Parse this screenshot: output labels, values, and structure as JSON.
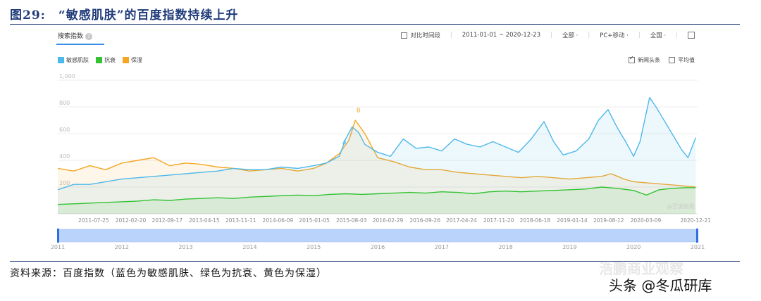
{
  "figure": {
    "title": "图29:　“敏感肌肤”的百度指数持续上升",
    "source": "资料来源：百度指数（蓝色为敏感肌肤、绿色为抗衰、黄色为保湿）",
    "watermark_top": "浩鹏商业观察",
    "watermark_bottom": "头条 @冬瓜研库"
  },
  "ui": {
    "tab_label": "搜索指数",
    "help_icon": "question-icon",
    "compare_label": "对比时间段",
    "date_range": "2011-01-01 ~ 2020-12-23",
    "filter_all": "全部 ·",
    "filter_device": "PC+移动 ·",
    "filter_region": "全国 ·",
    "news_label": "新闻头条",
    "avg_label": "平均值",
    "chart_watermark": "@百度指数",
    "colors": {
      "accent": "#3a8ee6"
    }
  },
  "chart_data": {
    "type": "area",
    "title": "",
    "xlabel": "",
    "ylabel": "",
    "ylim": [
      0,
      1000
    ],
    "yticks": [
      "1,000",
      "800",
      "600",
      "400",
      "200"
    ],
    "y_tick_values": [
      1000,
      800,
      600,
      400,
      200
    ],
    "x_tick_labels": [
      "2011-07-25",
      "2012-02-20",
      "2012-09-17",
      "2013-04-15",
      "2013-11-11",
      "2014-06-09",
      "2015-01-05",
      "2015-08-03",
      "2016-02-29",
      "2016-09-26",
      "2017-04-24",
      "2017-11-20",
      "2018-06-18",
      "2019-01-14",
      "2019-08-12",
      "2020-03-09",
      "2020-12-21"
    ],
    "x_tick_years": [
      2011.56,
      2012.14,
      2012.71,
      2013.29,
      2013.86,
      2014.44,
      2015.01,
      2015.59,
      2016.16,
      2016.74,
      2017.31,
      2017.89,
      2018.46,
      2019.04,
      2019.61,
      2020.19,
      2020.97
    ],
    "xlim": [
      2011.0,
      2021.0
    ],
    "brush_years": [
      "2011",
      "2012",
      "2013",
      "2014",
      "2015",
      "2016",
      "2017",
      "2018",
      "2019",
      "2020",
      "2021"
    ],
    "annotations": [
      {
        "text": "B",
        "x": 2015.7,
        "y": 760,
        "color": "#f5a623"
      },
      {
        "text": "A",
        "x": 2015.48,
        "y": 520,
        "color": "#4db8ea"
      }
    ],
    "grid": true,
    "legend": "top-left",
    "series": [
      {
        "name": "敏感肌肤",
        "color": "#4db8ea",
        "x": [
          2011.0,
          2011.25,
          2011.5,
          2011.75,
          2012.0,
          2012.25,
          2012.5,
          2012.75,
          2013.0,
          2013.25,
          2013.5,
          2013.75,
          2014.0,
          2014.25,
          2014.5,
          2014.75,
          2015.0,
          2015.2,
          2015.4,
          2015.5,
          2015.6,
          2015.7,
          2015.8,
          2016.0,
          2016.2,
          2016.4,
          2016.6,
          2016.8,
          2017.0,
          2017.2,
          2017.4,
          2017.6,
          2017.8,
          2018.0,
          2018.2,
          2018.4,
          2018.6,
          2018.75,
          2018.9,
          2019.1,
          2019.3,
          2019.45,
          2019.6,
          2019.75,
          2019.9,
          2020.0,
          2020.1,
          2020.25,
          2020.35,
          2020.45,
          2020.6,
          2020.75,
          2020.85,
          2020.97
        ],
        "y": [
          180,
          220,
          220,
          240,
          260,
          270,
          280,
          290,
          300,
          310,
          320,
          340,
          330,
          330,
          350,
          340,
          360,
          380,
          430,
          560,
          650,
          610,
          520,
          460,
          430,
          560,
          490,
          500,
          470,
          560,
          520,
          500,
          540,
          500,
          460,
          560,
          690,
          540,
          440,
          470,
          560,
          700,
          780,
          640,
          520,
          430,
          540,
          870,
          800,
          720,
          600,
          480,
          420,
          570
        ]
      },
      {
        "name": "抗衰",
        "color": "#32c232",
        "x": [
          2011.0,
          2011.25,
          2011.5,
          2011.75,
          2012.0,
          2012.25,
          2012.5,
          2012.75,
          2013.0,
          2013.25,
          2013.5,
          2013.75,
          2014.0,
          2014.25,
          2014.5,
          2014.75,
          2015.0,
          2015.25,
          2015.5,
          2015.75,
          2016.0,
          2016.25,
          2016.5,
          2016.75,
          2017.0,
          2017.25,
          2017.5,
          2017.75,
          2018.0,
          2018.25,
          2018.5,
          2018.75,
          2019.0,
          2019.25,
          2019.5,
          2019.75,
          2020.0,
          2020.2,
          2020.4,
          2020.6,
          2020.8,
          2020.97
        ],
        "y": [
          70,
          75,
          80,
          85,
          90,
          95,
          105,
          100,
          110,
          115,
          120,
          115,
          125,
          130,
          135,
          140,
          135,
          145,
          150,
          145,
          150,
          155,
          160,
          155,
          165,
          160,
          150,
          165,
          170,
          165,
          170,
          175,
          180,
          185,
          200,
          190,
          175,
          140,
          180,
          190,
          195,
          195
        ]
      },
      {
        "name": "保湿",
        "color": "#f5a623",
        "x": [
          2011.0,
          2011.25,
          2011.5,
          2011.75,
          2012.0,
          2012.25,
          2012.5,
          2012.75,
          2013.0,
          2013.25,
          2013.5,
          2013.75,
          2014.0,
          2014.25,
          2014.5,
          2014.75,
          2015.0,
          2015.2,
          2015.4,
          2015.55,
          2015.65,
          2015.8,
          2016.0,
          2016.25,
          2016.5,
          2016.75,
          2017.0,
          2017.25,
          2017.5,
          2017.75,
          2018.0,
          2018.25,
          2018.5,
          2018.75,
          2019.0,
          2019.25,
          2019.5,
          2019.65,
          2019.75,
          2019.85,
          2020.0,
          2020.25,
          2020.5,
          2020.75,
          2020.97
        ],
        "y": [
          340,
          320,
          360,
          330,
          380,
          400,
          420,
          360,
          380,
          370,
          350,
          340,
          320,
          330,
          340,
          320,
          340,
          380,
          450,
          550,
          700,
          600,
          420,
          390,
          350,
          330,
          330,
          310,
          300,
          290,
          280,
          270,
          280,
          270,
          260,
          270,
          280,
          300,
          280,
          260,
          240,
          230,
          220,
          210,
          200
        ]
      }
    ]
  }
}
